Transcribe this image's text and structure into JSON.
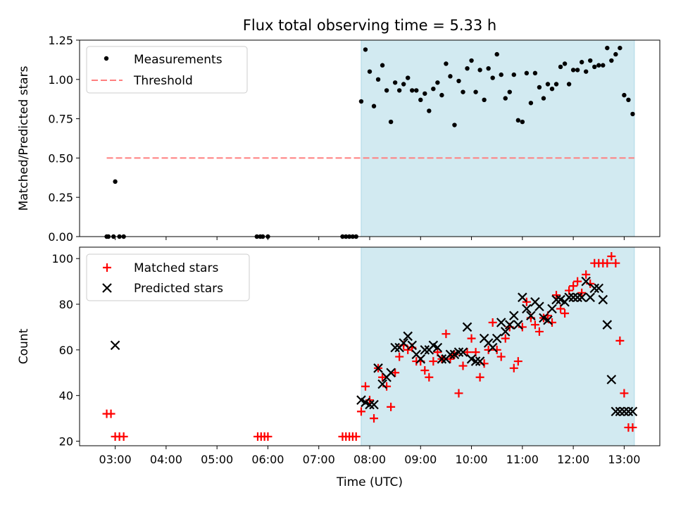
{
  "title": "Flux total observing time = 5.33 h",
  "colors": {
    "shade": "#add8e6",
    "threshold": "#ff7f7f",
    "matched": "#ff0000",
    "predicted": "#000000",
    "measure": "#000000"
  },
  "chart_data": [
    {
      "type": "scatter",
      "ylabel": "Matched/Predicted stars",
      "xlim": [
        "02:18",
        "13:42"
      ],
      "ylim": [
        0,
        1.25
      ],
      "yticks": [
        "0.00",
        "0.25",
        "0.50",
        "0.75",
        "1.00",
        "1.25"
      ],
      "legend": {
        "placement": "top-left",
        "entries": [
          "Measurements",
          "Threshold"
        ]
      },
      "threshold": {
        "y": 0.5,
        "x_start": "02:50",
        "x_end": "13:12"
      },
      "shaded_region": [
        "07:50",
        "13:12"
      ],
      "series": [
        {
          "name": "Measurements",
          "x": [
            "02:50",
            "02:52",
            "02:58",
            "03:00",
            "03:05",
            "03:10",
            "05:47",
            "05:51",
            "05:54",
            "06:00",
            "07:28",
            "07:32",
            "07:36",
            "07:40",
            "07:44",
            "07:50",
            "07:55",
            "08:00",
            "08:05",
            "08:10",
            "08:15",
            "08:20",
            "08:25",
            "08:30",
            "08:35",
            "08:40",
            "08:45",
            "08:50",
            "08:55",
            "09:00",
            "09:05",
            "09:10",
            "09:15",
            "09:20",
            "09:25",
            "09:30",
            "09:35",
            "09:40",
            "09:45",
            "09:50",
            "09:55",
            "10:00",
            "10:05",
            "10:10",
            "10:15",
            "10:20",
            "10:25",
            "10:30",
            "10:35",
            "10:40",
            "10:45",
            "10:50",
            "10:55",
            "11:00",
            "11:05",
            "11:10",
            "11:15",
            "11:20",
            "11:25",
            "11:30",
            "11:35",
            "11:40",
            "11:45",
            "11:50",
            "11:55",
            "12:00",
            "12:05",
            "12:10",
            "12:15",
            "12:20",
            "12:25",
            "12:30",
            "12:35",
            "12:40",
            "12:45",
            "12:50",
            "12:55",
            "13:00",
            "13:05",
            "13:10"
          ],
          "y": [
            0,
            0,
            0,
            0.35,
            0,
            0,
            0,
            0,
            0,
            0,
            0,
            0,
            0,
            0,
            0,
            0.86,
            1.19,
            1.05,
            0.83,
            1.0,
            1.09,
            0.93,
            0.73,
            0.98,
            0.93,
            0.97,
            1.01,
            0.93,
            0.93,
            0.87,
            0.91,
            0.8,
            0.94,
            0.98,
            0.9,
            1.1,
            1.02,
            0.71,
            0.99,
            0.92,
            1.07,
            1.12,
            0.92,
            1.06,
            0.87,
            1.07,
            1.01,
            1.16,
            1.03,
            0.88,
            0.92,
            1.03,
            0.74,
            0.73,
            1.04,
            0.85,
            1.04,
            0.95,
            0.88,
            0.97,
            0.94,
            0.97,
            1.08,
            1.1,
            0.97,
            1.06,
            1.06,
            1.11,
            1.05,
            1.12,
            1.08,
            1.09,
            1.09,
            1.2,
            1.12,
            1.16,
            1.2,
            0.9,
            0.87,
            0.78
          ]
        }
      ]
    },
    {
      "type": "scatter",
      "xlabel": "Time (UTC)",
      "ylabel": "Count",
      "xlim": [
        "02:18",
        "13:42"
      ],
      "ylim": [
        18,
        105
      ],
      "yticks": [
        "20",
        "40",
        "60",
        "80",
        "100"
      ],
      "xticks": [
        "03:00",
        "04:00",
        "05:00",
        "06:00",
        "07:00",
        "08:00",
        "09:00",
        "10:00",
        "11:00",
        "12:00",
        "13:00"
      ],
      "legend": {
        "placement": "top-left",
        "entries": [
          "Matched stars",
          "Predicted stars"
        ]
      },
      "shaded_region": [
        "07:50",
        "13:12"
      ],
      "series": [
        {
          "name": "Matched stars",
          "x": [
            "02:50",
            "02:55",
            "03:00",
            "03:05",
            "03:10",
            "05:48",
            "05:52",
            "05:56",
            "06:00",
            "07:28",
            "07:32",
            "07:36",
            "07:40",
            "07:44",
            "07:50",
            "07:55",
            "08:00",
            "08:05",
            "08:10",
            "08:15",
            "08:20",
            "08:25",
            "08:30",
            "08:35",
            "08:40",
            "08:45",
            "08:50",
            "08:55",
            "09:00",
            "09:05",
            "09:10",
            "09:15",
            "09:20",
            "09:25",
            "09:30",
            "09:35",
            "09:40",
            "09:45",
            "09:50",
            "09:55",
            "10:00",
            "10:05",
            "10:10",
            "10:15",
            "10:20",
            "10:25",
            "10:30",
            "10:35",
            "10:40",
            "10:45",
            "10:50",
            "10:55",
            "11:00",
            "11:05",
            "11:10",
            "11:15",
            "11:20",
            "11:25",
            "11:30",
            "11:35",
            "11:40",
            "11:45",
            "11:50",
            "11:55",
            "12:00",
            "12:05",
            "12:10",
            "12:15",
            "12:20",
            "12:25",
            "12:30",
            "12:35",
            "12:40",
            "12:45",
            "12:50",
            "12:55",
            "13:00",
            "13:05",
            "13:10"
          ],
          "y": [
            32,
            32,
            22,
            22,
            22,
            22,
            22,
            22,
            22,
            22,
            22,
            22,
            22,
            22,
            33,
            44,
            38,
            30,
            52,
            48,
            44,
            35,
            50,
            57,
            62,
            60,
            61,
            55,
            55,
            51,
            48,
            55,
            59,
            56,
            67,
            56,
            58,
            41,
            53,
            59,
            65,
            59,
            48,
            54,
            60,
            72,
            60,
            57,
            65,
            70,
            52,
            55,
            70,
            81,
            74,
            71,
            68,
            74,
            75,
            72,
            84,
            78,
            76,
            86,
            88,
            90,
            85,
            93,
            89,
            98,
            98,
            98,
            98,
            101,
            98,
            64,
            41,
            26,
            26
          ]
        },
        {
          "name": "Predicted stars",
          "x": [
            "03:00",
            "07:50",
            "07:55",
            "08:00",
            "08:05",
            "08:10",
            "08:15",
            "08:20",
            "08:25",
            "08:30",
            "08:35",
            "08:40",
            "08:45",
            "08:50",
            "08:55",
            "09:00",
            "09:05",
            "09:10",
            "09:15",
            "09:20",
            "09:25",
            "09:30",
            "09:35",
            "09:40",
            "09:45",
            "09:50",
            "09:55",
            "10:00",
            "10:05",
            "10:10",
            "10:15",
            "10:20",
            "10:25",
            "10:30",
            "10:35",
            "10:40",
            "10:45",
            "10:50",
            "10:55",
            "11:00",
            "11:05",
            "11:10",
            "11:15",
            "11:20",
            "11:25",
            "11:30",
            "11:35",
            "11:40",
            "11:45",
            "11:50",
            "11:55",
            "12:00",
            "12:05",
            "12:10",
            "12:15",
            "12:20",
            "12:25",
            "12:30",
            "12:35",
            "12:40",
            "12:45",
            "12:50",
            "12:55",
            "13:00",
            "13:05",
            "13:10"
          ],
          "y": [
            62,
            38,
            37,
            36,
            36,
            52,
            45,
            48,
            50,
            61,
            61,
            63,
            66,
            62,
            58,
            56,
            60,
            60,
            62,
            61,
            56,
            56,
            58,
            58,
            59,
            59,
            70,
            56,
            55,
            55,
            65,
            63,
            61,
            65,
            72,
            68,
            71,
            75,
            71,
            83,
            78,
            75,
            81,
            79,
            74,
            73,
            78,
            82,
            82,
            81,
            83,
            83,
            83,
            83,
            90,
            83,
            87,
            87,
            82,
            71,
            47,
            33,
            33,
            33,
            33,
            33
          ]
        }
      ]
    }
  ]
}
